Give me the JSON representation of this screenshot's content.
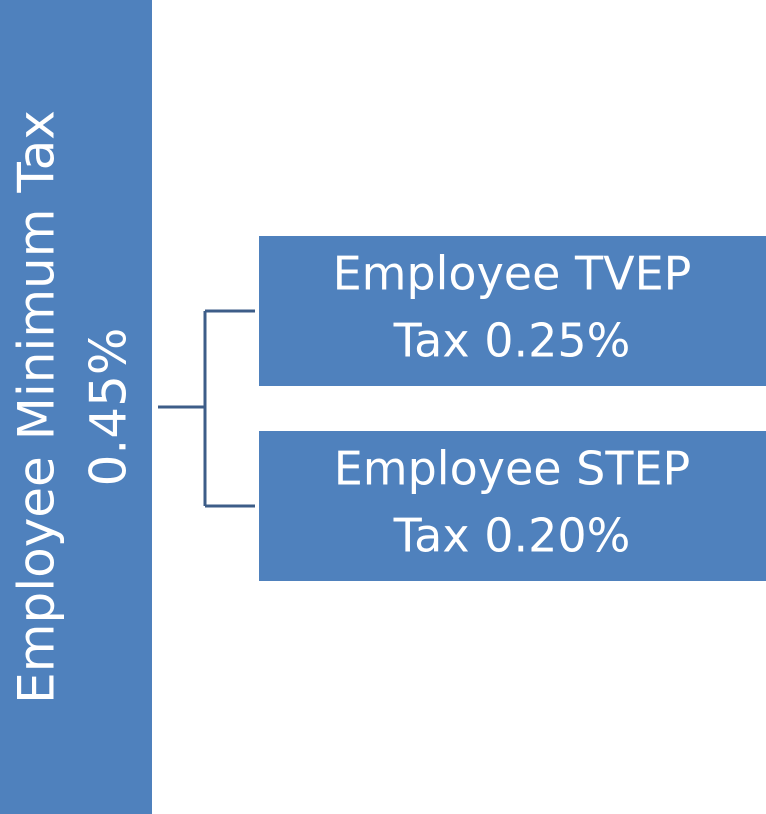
{
  "root": {
    "lines": [
      "Employee Minimum Tax",
      "0.45%"
    ]
  },
  "children": [
    {
      "lines": [
        "Employee TVEP",
        "Tax 0.25%"
      ]
    },
    {
      "lines": [
        "Employee STEP",
        "Tax 0.20%"
      ]
    }
  ]
}
